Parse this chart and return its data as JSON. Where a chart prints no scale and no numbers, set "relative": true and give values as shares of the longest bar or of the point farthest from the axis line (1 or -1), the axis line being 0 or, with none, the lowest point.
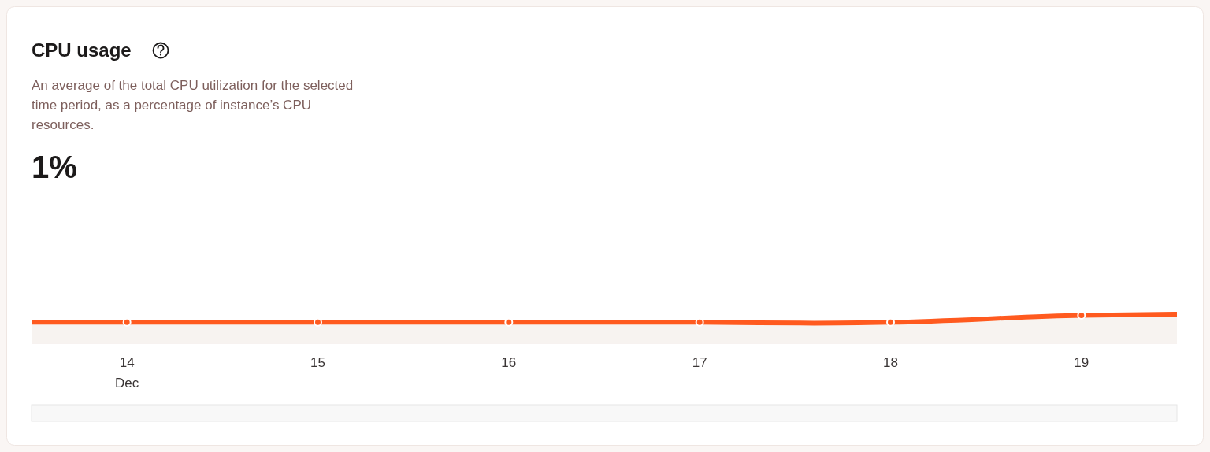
{
  "chart_data": {
    "type": "area",
    "title": "CPU usage",
    "subtitle": "An average of the total CPU utilization for the selected time period, as a percentage of instance’s CPU resources.",
    "annotations": [
      "1%"
    ],
    "relative": true,
    "x": [
      13.5,
      14,
      15,
      16,
      17,
      17.6,
      18,
      19,
      19.5
    ],
    "xlim": [
      13.5,
      19.5
    ],
    "xticks": [
      {
        "value": 14,
        "label": "14\nDec"
      },
      15,
      16,
      17,
      18,
      19
    ],
    "series": [
      {
        "color": "#ff5a1f",
        "values": [
          0.72,
          0.72,
          0.72,
          0.72,
          0.72,
          0.69,
          0.72,
          0.96,
          1.0
        ]
      }
    ],
    "marker": "circle",
    "grid": false
  }
}
